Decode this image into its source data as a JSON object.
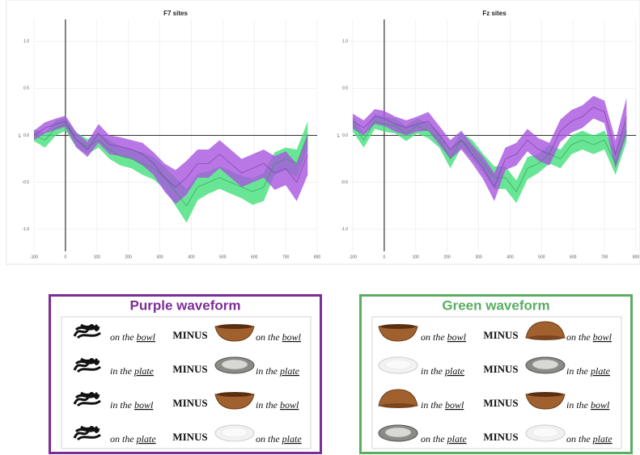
{
  "chart_data": [
    {
      "type": "line",
      "title": "F7 sites",
      "y_label": "µV",
      "x": [
        -100,
        -65,
        -30,
        0,
        35,
        70,
        105,
        140,
        175,
        210,
        245,
        280,
        315,
        350,
        385,
        420,
        455,
        490,
        525,
        560,
        595,
        630,
        665,
        700,
        735,
        770
      ],
      "xlim": [
        -100,
        800
      ],
      "xticks": [
        -100,
        0,
        100,
        200,
        300,
        400,
        500,
        600,
        700,
        800
      ],
      "ylim": [
        -1.2,
        1.2
      ],
      "yticks": [
        {
          "value": -1,
          "label": "-1.0"
        },
        {
          "value": -0.5,
          "label": "-0.5"
        },
        {
          "value": 0,
          "label": "0.0"
        },
        {
          "value": 0.5,
          "label": "0.5"
        },
        {
          "value": 1,
          "label": "1.0"
        }
      ],
      "grid": true,
      "series": [
        {
          "color": "#44e07a",
          "values": [
            0.0,
            -0.05,
            0.08,
            0.12,
            -0.05,
            -0.12,
            -0.05,
            -0.15,
            -0.22,
            -0.25,
            -0.3,
            -0.35,
            -0.45,
            -0.6,
            -0.75,
            -0.55,
            -0.5,
            -0.45,
            -0.5,
            -0.55,
            -0.6,
            -0.55,
            -0.3,
            -0.25,
            -0.3,
            0.0
          ],
          "errors": [
            0.06,
            0.08,
            0.08,
            0.07,
            0.08,
            0.08,
            0.08,
            0.1,
            0.1,
            0.1,
            0.12,
            0.12,
            0.12,
            0.15,
            0.18,
            0.14,
            0.12,
            0.12,
            0.12,
            0.12,
            0.14,
            0.15,
            0.12,
            0.12,
            0.15,
            0.15
          ]
        },
        {
          "color": "#a855e0",
          "values": [
            0.0,
            0.08,
            0.12,
            0.15,
            -0.05,
            -0.15,
            0.02,
            -0.1,
            -0.12,
            -0.15,
            -0.2,
            -0.3,
            -0.45,
            -0.55,
            -0.45,
            -0.3,
            -0.3,
            -0.2,
            -0.3,
            -0.4,
            -0.35,
            -0.3,
            -0.4,
            -0.35,
            -0.5,
            -0.2
          ],
          "errors": [
            0.05,
            0.06,
            0.06,
            0.06,
            0.08,
            0.08,
            0.1,
            0.1,
            0.1,
            0.1,
            0.12,
            0.12,
            0.15,
            0.18,
            0.18,
            0.15,
            0.15,
            0.15,
            0.15,
            0.15,
            0.15,
            0.15,
            0.18,
            0.18,
            0.2,
            0.22
          ]
        }
      ]
    },
    {
      "type": "line",
      "title": "Fz sites",
      "y_label": "µV",
      "x": [
        -100,
        -65,
        -30,
        0,
        35,
        70,
        105,
        140,
        175,
        210,
        245,
        280,
        315,
        350,
        385,
        420,
        455,
        490,
        525,
        560,
        595,
        630,
        665,
        700,
        735,
        770
      ],
      "xlim": [
        -100,
        800
      ],
      "xticks": [
        -100,
        0,
        100,
        200,
        300,
        400,
        500,
        600,
        700,
        800
      ],
      "ylim": [
        -1.2,
        1.2
      ],
      "yticks": [
        {
          "value": -1,
          "label": "-1.0"
        },
        {
          "value": -0.5,
          "label": "-0.5"
        },
        {
          "value": 0,
          "label": "0.0"
        },
        {
          "value": 0.5,
          "label": "0.5"
        },
        {
          "value": 1,
          "label": "1.0"
        }
      ],
      "grid": true,
      "series": [
        {
          "color": "#44e07a",
          "values": [
            0.12,
            -0.05,
            0.15,
            0.12,
            0.1,
            0.02,
            0.1,
            0.05,
            -0.05,
            -0.25,
            -0.05,
            -0.15,
            -0.3,
            -0.45,
            -0.45,
            -0.6,
            -0.35,
            -0.3,
            -0.2,
            -0.25,
            -0.1,
            -0.05,
            -0.1,
            -0.05,
            -0.3,
            0.05
          ],
          "errors": [
            0.08,
            0.08,
            0.08,
            0.08,
            0.08,
            0.08,
            0.08,
            0.08,
            0.08,
            0.1,
            0.08,
            0.1,
            0.1,
            0.12,
            0.12,
            0.12,
            0.12,
            0.1,
            0.1,
            0.1,
            0.1,
            0.1,
            0.1,
            0.1,
            0.12,
            0.12
          ]
        },
        {
          "color": "#a855e0",
          "values": [
            0.15,
            0.08,
            0.2,
            0.18,
            0.12,
            0.08,
            0.12,
            0.15,
            0.0,
            -0.15,
            -0.05,
            -0.2,
            -0.35,
            -0.55,
            -0.25,
            -0.2,
            -0.05,
            -0.15,
            -0.2,
            0.05,
            0.15,
            0.2,
            0.3,
            0.25,
            -0.2,
            0.2
          ],
          "errors": [
            0.08,
            0.08,
            0.08,
            0.08,
            0.08,
            0.08,
            0.08,
            0.1,
            0.1,
            0.1,
            0.1,
            0.1,
            0.12,
            0.15,
            0.12,
            0.12,
            0.12,
            0.12,
            0.12,
            0.12,
            0.12,
            0.12,
            0.12,
            0.12,
            0.15,
            0.2
          ]
        }
      ]
    }
  ],
  "legends": [
    {
      "title": "Purple waveform",
      "rows": [
        {
          "left": {
            "prep": "on the",
            "noun": "bowl"
          },
          "operator": "MINUS",
          "right": {
            "prep": "on the",
            "noun": "bowl"
          }
        },
        {
          "left": {
            "prep": "in the",
            "noun": "plate"
          },
          "operator": "MINUS",
          "right": {
            "prep": "in the",
            "noun": "plate"
          }
        },
        {
          "left": {
            "prep": "in the",
            "noun": "bowl"
          },
          "operator": "MINUS",
          "right": {
            "prep": "in the",
            "noun": "bowl"
          }
        },
        {
          "left": {
            "prep": "on the",
            "noun": "plate"
          },
          "operator": "MINUS",
          "right": {
            "prep": "on the",
            "noun": "plate"
          }
        }
      ]
    },
    {
      "title": "Green waveform",
      "rows": [
        {
          "left": {
            "prep": "on the",
            "noun": "bowl"
          },
          "operator": "MINUS",
          "right": {
            "prep": "on the",
            "noun": "bowl"
          }
        },
        {
          "left": {
            "prep": "in the",
            "noun": "plate"
          },
          "operator": "MINUS",
          "right": {
            "prep": "in the",
            "noun": "plate"
          }
        },
        {
          "left": {
            "prep": "in the",
            "noun": "bowl"
          },
          "operator": "MINUS",
          "right": {
            "prep": "in the",
            "noun": "bowl"
          }
        },
        {
          "left": {
            "prep": "on the",
            "noun": "plate"
          },
          "operator": "MINUS",
          "right": {
            "prep": "on the",
            "noun": "plate"
          }
        }
      ]
    }
  ]
}
